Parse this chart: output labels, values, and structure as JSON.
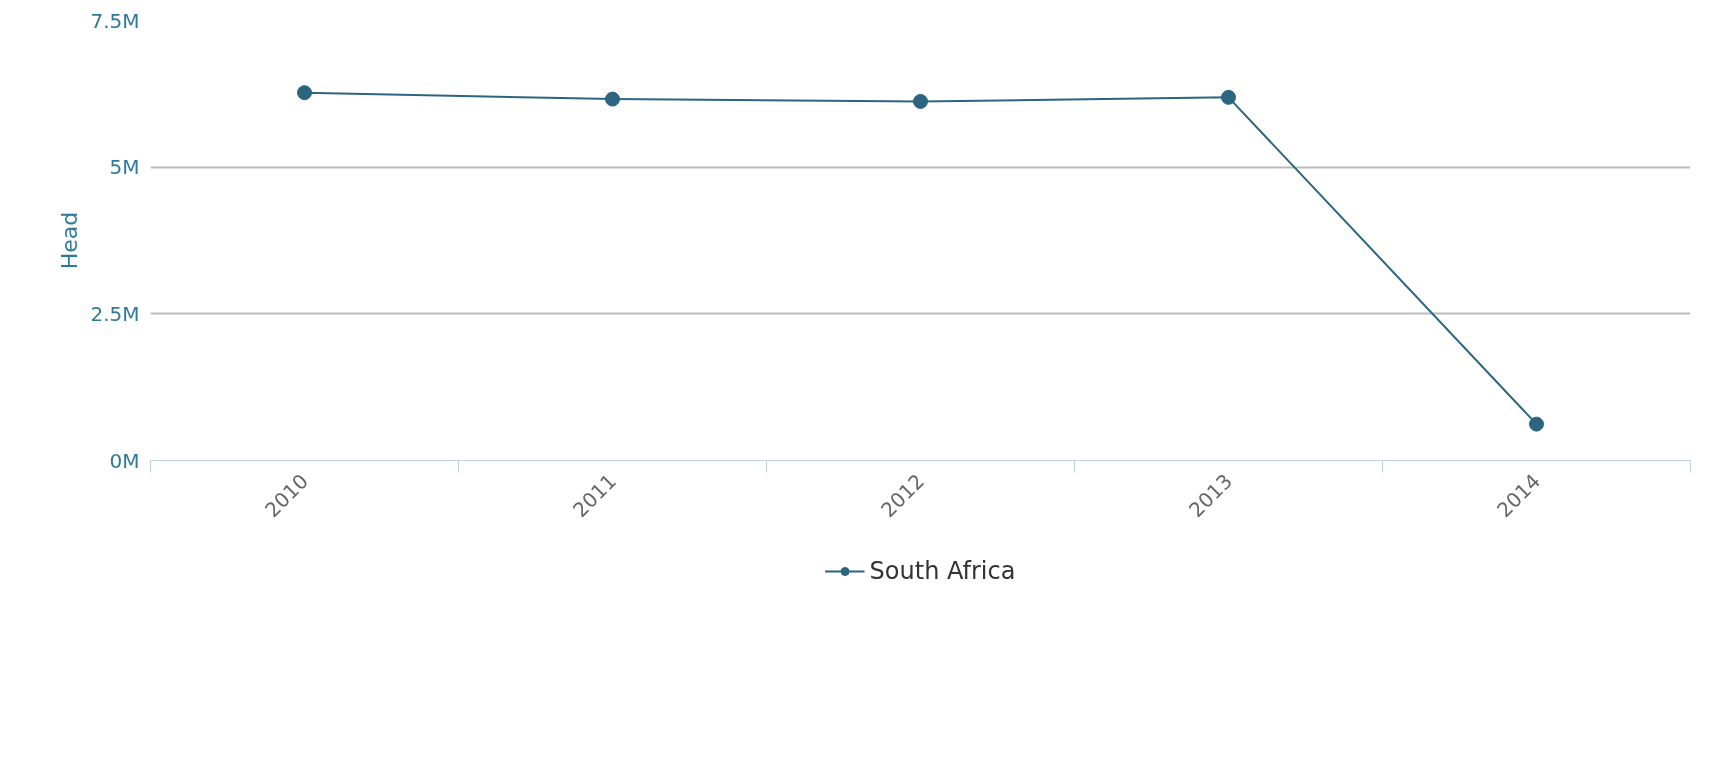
{
  "chart_data": {
    "type": "line",
    "ylabel": "Head",
    "categories": [
      "2010",
      "2011",
      "2012",
      "2013",
      "2014"
    ],
    "series": [
      {
        "name": "South Africa",
        "color": "#2b6580",
        "values": [
          6.27,
          6.16,
          6.12,
          6.19,
          0.62
        ]
      }
    ],
    "ylim": [
      0,
      7.5
    ],
    "yticks": [
      {
        "value": 0,
        "label": "0M"
      },
      {
        "value": 2.5,
        "label": "2.5M"
      },
      {
        "value": 5,
        "label": "5M"
      },
      {
        "value": 7.5,
        "label": "7.5M"
      }
    ],
    "grid": "y",
    "legend": "bottom",
    "marker": "circle",
    "line_style": "solid"
  }
}
